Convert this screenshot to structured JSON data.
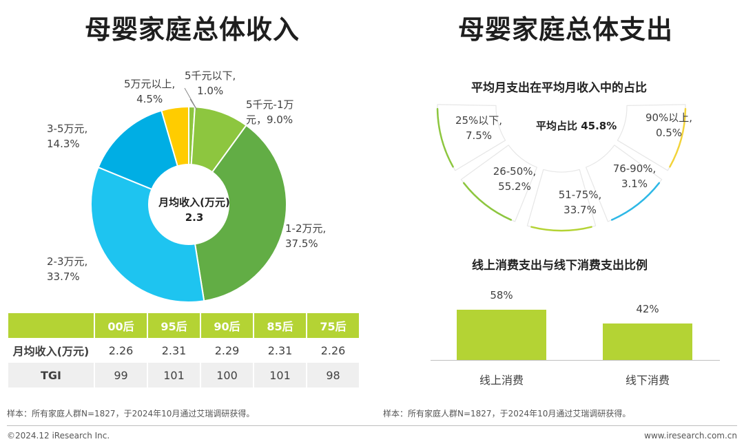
{
  "left": {
    "title": "母婴家庭总体收入",
    "center_label": "月均收入(万元)",
    "center_value": "2.3",
    "slice_labels": [
      "5千元以下,\n1.0%",
      "5千元-1万\n元，9.0%",
      "1-2万元,\n37.5%",
      "2-3万元,\n33.7%",
      "3-5万元,\n14.3%",
      "5万元以上,\n4.5%"
    ],
    "table": {
      "header": [
        "",
        "00后",
        "95后",
        "90后",
        "85后",
        "75后"
      ],
      "rows": [
        [
          "月均收入(万元)",
          "2.26",
          "2.31",
          "2.29",
          "2.31",
          "2.26"
        ],
        [
          "TGI",
          "99",
          "101",
          "100",
          "101",
          "98"
        ]
      ]
    },
    "note": "样本：所有家庭人群N=1827，于2024年10月通过艾瑞调研获得。"
  },
  "right": {
    "title": "母婴家庭总体支出",
    "arc_title": "平均月支出在平均月收入中的占比",
    "avg_label": "平均占比 45.8%",
    "cards": [
      "25%以下,\n7.5%",
      "26-50%,\n55.2%",
      "51-75%,\n33.7%",
      "76-90%,\n3.1%",
      "90%以上,\n0.5%"
    ],
    "bar_title": "线上消费支出与线下消费支出比例",
    "note": "样本：所有家庭人群N=1827，于2024年10月通过艾瑞调研获得。"
  },
  "footer": {
    "left": "©2024.12 iResearch Inc.",
    "right": "www.iresearch.com.cn"
  },
  "chart_data": [
    {
      "type": "pie",
      "title": "母婴家庭总体收入",
      "categories": [
        "5千元以下",
        "5千元-1万元",
        "1-2万元",
        "2-3万元",
        "3-5万元",
        "5万元以上"
      ],
      "values": [
        1.0,
        9.0,
        37.5,
        33.7,
        14.3,
        4.5
      ],
      "colors": [
        "#8dc63f",
        "#8dc63f",
        "#62ad45",
        "#1ec4f0",
        "#00aee4",
        "#ffcc00"
      ],
      "center_text": "月均收入(万元) 2.3"
    },
    {
      "type": "pie",
      "title": "平均月支出在平均月收入中的占比",
      "categories": [
        "25%以下",
        "26-50%",
        "51-75%",
        "76-90%",
        "90%以上"
      ],
      "values": [
        7.5,
        55.2,
        33.7,
        3.1,
        0.5
      ],
      "colors": [
        "#8dc63f",
        "#8dc63f",
        "#b4d334",
        "#2eb8e6",
        "#f2d33a"
      ],
      "center_text": "平均占比 45.8%"
    },
    {
      "type": "bar",
      "title": "线上消费支出与线下消费支出比例",
      "categories": [
        "线上消费",
        "线下消费"
      ],
      "values": [
        58,
        42
      ],
      "value_labels": [
        "58%",
        "42%"
      ],
      "ylim": [
        0,
        100
      ],
      "color": "#b4d334"
    }
  ]
}
